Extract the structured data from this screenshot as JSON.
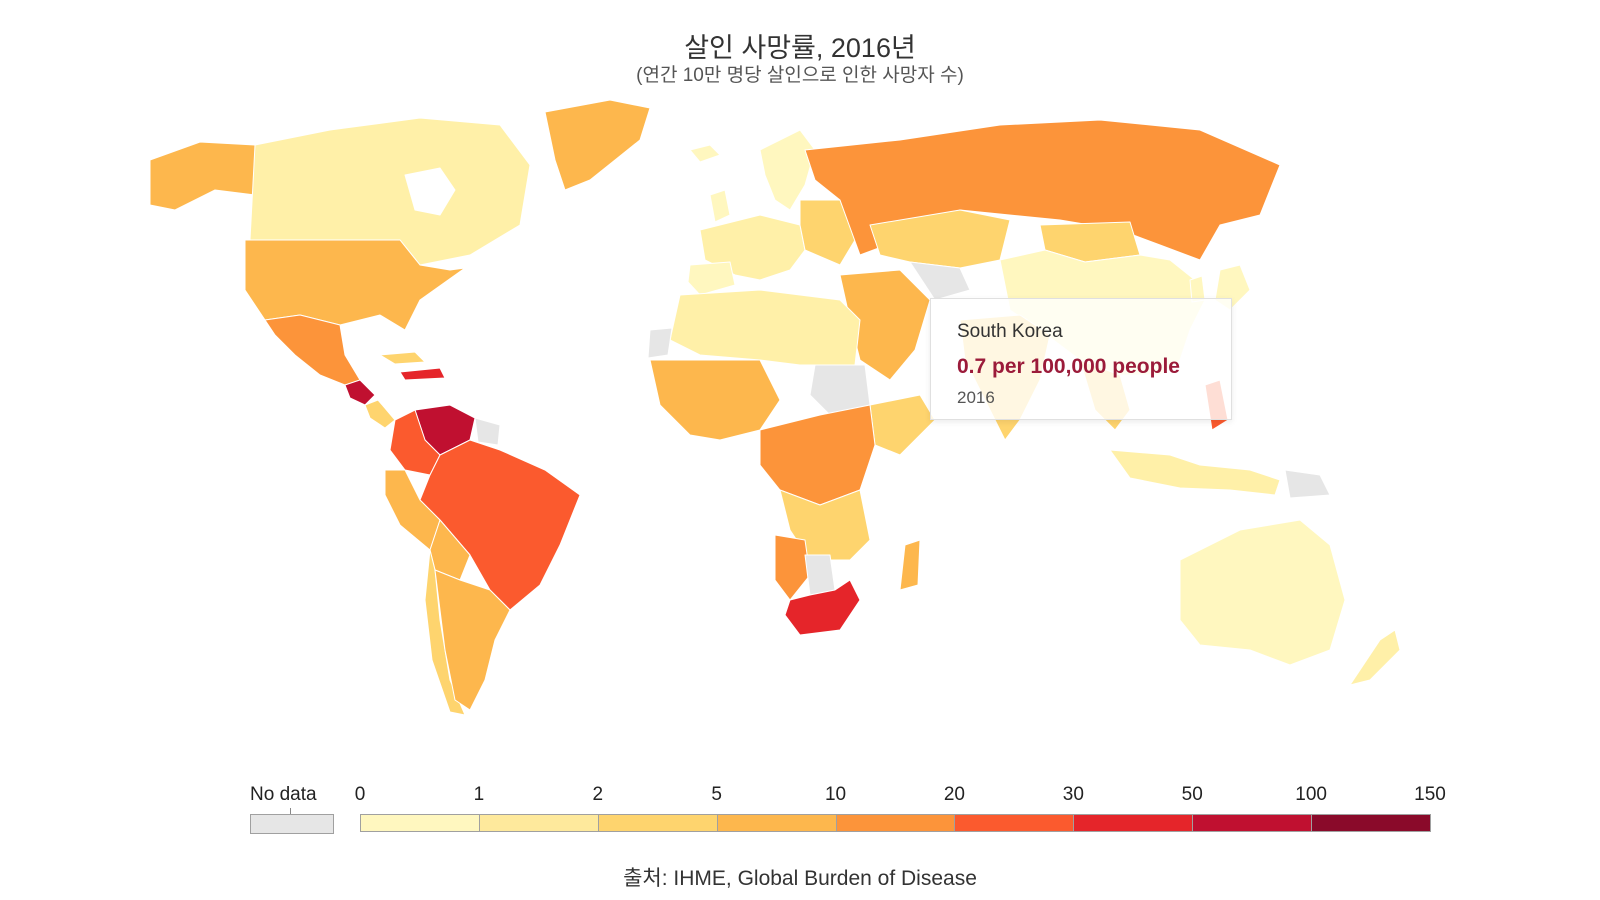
{
  "header": {
    "title": "살인 사망률, 2016년",
    "subtitle": "(연간 10만 명당 살인으로 인한 사망자 수)"
  },
  "tooltip": {
    "country": "South Korea",
    "value": "0.7 per 100,000 people",
    "year": "2016"
  },
  "legend": {
    "no_data_label": "No data",
    "ticks": [
      "0",
      "1",
      "2",
      "5",
      "10",
      "20",
      "30",
      "50",
      "100",
      "150"
    ],
    "colors": [
      "#fff7bf",
      "#fee99c",
      "#fed46e",
      "#fdb74d",
      "#fc943a",
      "#fb5a2e",
      "#e5252a",
      "#c01030",
      "#8a0a2a"
    ],
    "no_data_color": "#e6e6e6"
  },
  "source": "출처: IHME, Global Burden of Disease"
}
